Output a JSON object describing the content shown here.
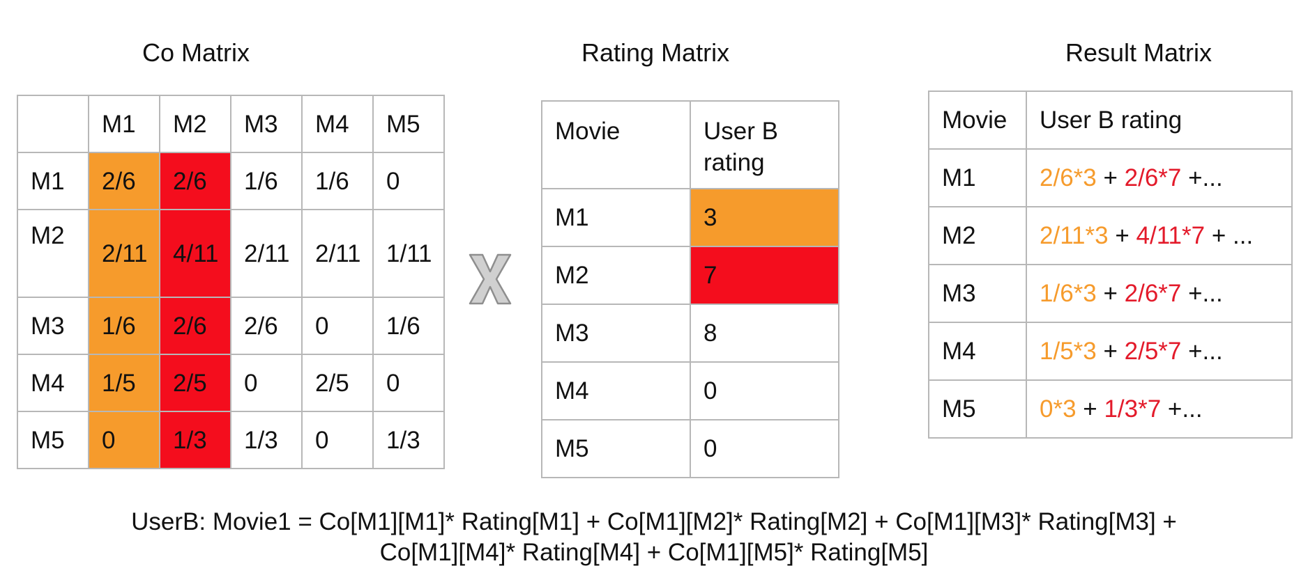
{
  "co_matrix": {
    "title": "Co Matrix",
    "header": [
      "",
      "M1",
      "M2",
      "M3",
      "M4",
      "M5"
    ],
    "rows": [
      [
        "M1",
        "2/6",
        "2/6",
        "1/6",
        "1/6",
        "0"
      ],
      [
        "M2",
        "2/11",
        "4/11",
        "2/11",
        "2/11",
        "1/11"
      ],
      [
        "M3",
        "1/6",
        "2/6",
        "2/6",
        "0",
        "1/6"
      ],
      [
        "M4",
        "1/5",
        "2/5",
        "0",
        "2/5",
        "0"
      ],
      [
        "M5",
        "0",
        "1/3",
        "1/3",
        "0",
        "1/3"
      ]
    ],
    "highlight_column_colors": {
      "M1": "#f69b2c",
      "M2": "#f40d1d"
    }
  },
  "operator_icon": "multiply-x-icon",
  "rating_matrix": {
    "title": "Rating Matrix",
    "header": [
      "Movie",
      "User B rating"
    ],
    "rows": [
      [
        "M1",
        "3"
      ],
      [
        "M2",
        "7"
      ],
      [
        "M3",
        "8"
      ],
      [
        "M4",
        "0"
      ],
      [
        "M5",
        "0"
      ]
    ],
    "highlight_colors": {
      "M1": "#f69b2c",
      "M2": "#f40d1d"
    }
  },
  "result_matrix": {
    "title": "Result Matrix",
    "header": [
      "Movie",
      "User B rating"
    ],
    "rows": [
      {
        "movie": "M1",
        "term1": "2/6*3",
        "op1": " + ",
        "term2": "2/6*7",
        "rest": " +..."
      },
      {
        "movie": "M2",
        "term1": "2/11*3",
        "op1": " + ",
        "term2": "4/11*7",
        "rest": " + ..."
      },
      {
        "movie": "M3",
        "term1": "1/6*3",
        "op1": " + ",
        "term2": "2/6*7",
        "rest": " +..."
      },
      {
        "movie": "M4",
        "term1": "1/5*3",
        "op1": " + ",
        "term2": "2/5*7",
        "rest": " +..."
      },
      {
        "movie": "M5",
        "term1": "0*3",
        "op1": " + ",
        "term2": "1/3*7",
        "rest": " +..."
      }
    ],
    "term_colors": {
      "term1": "#f69b2c",
      "term2": "#e31a2a"
    }
  },
  "formula": {
    "line1": "UserB: Movie1 = Co[M1][M1]* Rating[M1] + Co[M1][M2]* Rating[M2] + Co[M1][M3]* Rating[M3] +",
    "line2": "Co[M1][M4]* Rating[M4] + Co[M1][M5]* Rating[M5]"
  }
}
